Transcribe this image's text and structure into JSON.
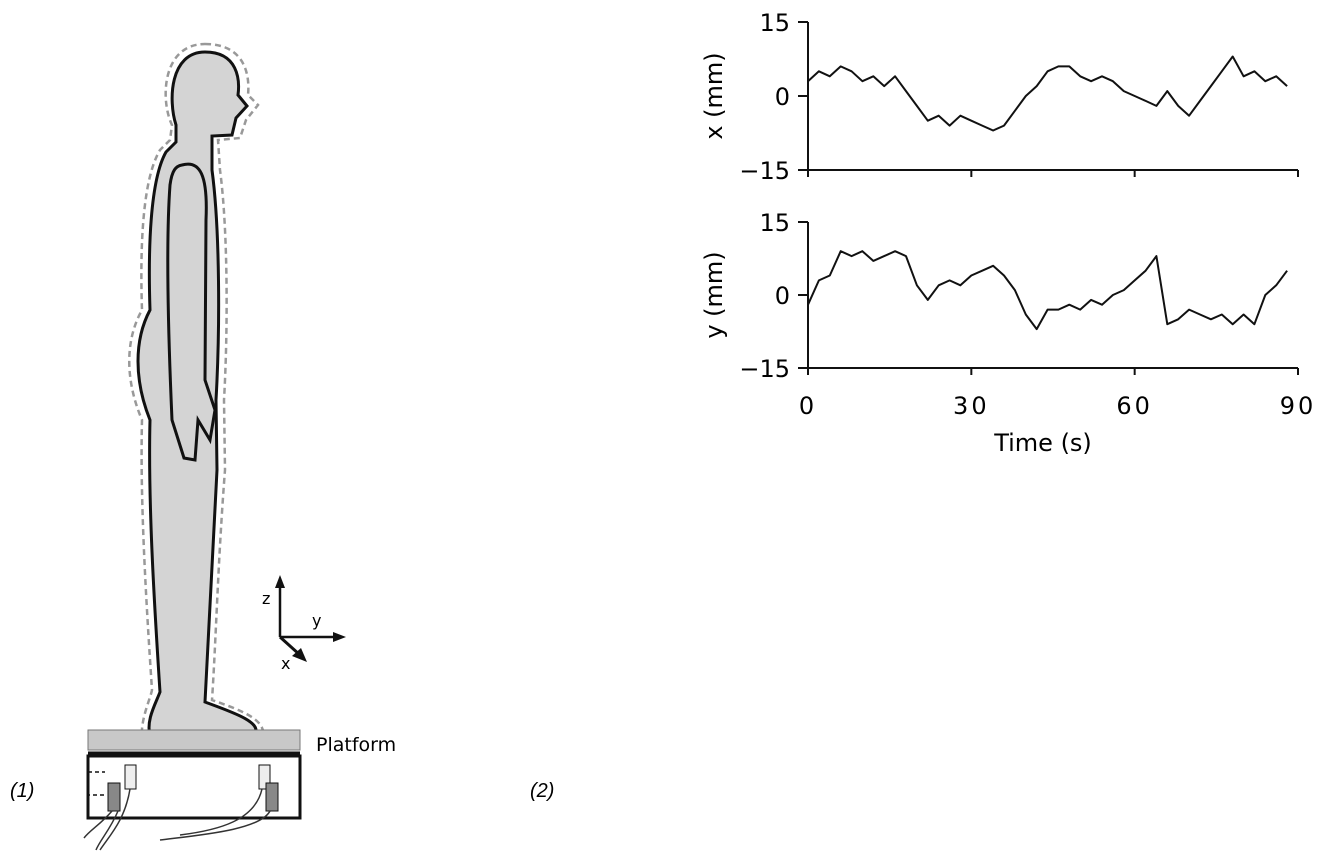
{
  "figure": {
    "panel_labels": [
      "(1)",
      "(2)"
    ],
    "platform_label": "Platform",
    "axis_names": [
      "z",
      "y",
      "x"
    ]
  },
  "chart_data": [
    {
      "type": "line",
      "ylabel": "x (mm)",
      "x": [
        0,
        2,
        4,
        6,
        8,
        10,
        12,
        14,
        16,
        18,
        20,
        22,
        24,
        26,
        28,
        30,
        32,
        34,
        36,
        38,
        40,
        42,
        44,
        46,
        48,
        50,
        52,
        54,
        56,
        58,
        60,
        62,
        64,
        66,
        68,
        70,
        72,
        74,
        76,
        78,
        80,
        82,
        84,
        86,
        88
      ],
      "series": [
        {
          "color": "#111111",
          "values": [
            3,
            5,
            4,
            6,
            5,
            3,
            4,
            2,
            4,
            1,
            -2,
            -5,
            -4,
            -6,
            -4,
            -5,
            -6,
            -7,
            -6,
            -3,
            0,
            2,
            5,
            6,
            6,
            4,
            3,
            4,
            3,
            1,
            0,
            -1,
            -2,
            1,
            -2,
            -4,
            -1,
            2,
            5,
            8,
            4,
            5,
            3,
            4,
            2
          ]
        }
      ],
      "xlim": [
        0,
        90
      ],
      "ylim": [
        -15,
        15
      ],
      "yticks": [
        {
          "value": -15,
          "label": "−15"
        },
        0,
        15
      ]
    },
    {
      "type": "line",
      "ylabel": "y (mm)",
      "xlabel": "Time  (s)",
      "x": [
        0,
        2,
        4,
        6,
        8,
        10,
        12,
        14,
        16,
        18,
        20,
        22,
        24,
        26,
        28,
        30,
        32,
        34,
        36,
        38,
        40,
        42,
        44,
        46,
        48,
        50,
        52,
        54,
        56,
        58,
        60,
        62,
        64,
        66,
        68,
        70,
        72,
        74,
        76,
        78,
        80,
        82,
        84,
        86,
        88
      ],
      "series": [
        {
          "color": "#111111",
          "values": [
            -2,
            3,
            4,
            9,
            8,
            9,
            7,
            8,
            9,
            8,
            2,
            -1,
            2,
            3,
            2,
            4,
            5,
            6,
            4,
            1,
            -4,
            -7,
            -3,
            -3,
            -2,
            -3,
            -1,
            -2,
            0,
            1,
            3,
            5,
            8,
            -6,
            -5,
            -3,
            -4,
            -5,
            -4,
            -6,
            -4,
            -6,
            0,
            2,
            5
          ]
        }
      ],
      "xlim": [
        0,
        90
      ],
      "ylim": [
        -15,
        15
      ],
      "xticks": [
        0,
        30,
        60,
        90
      ],
      "yticks": [
        {
          "value": -15,
          "label": "−15"
        },
        0,
        15
      ]
    }
  ]
}
